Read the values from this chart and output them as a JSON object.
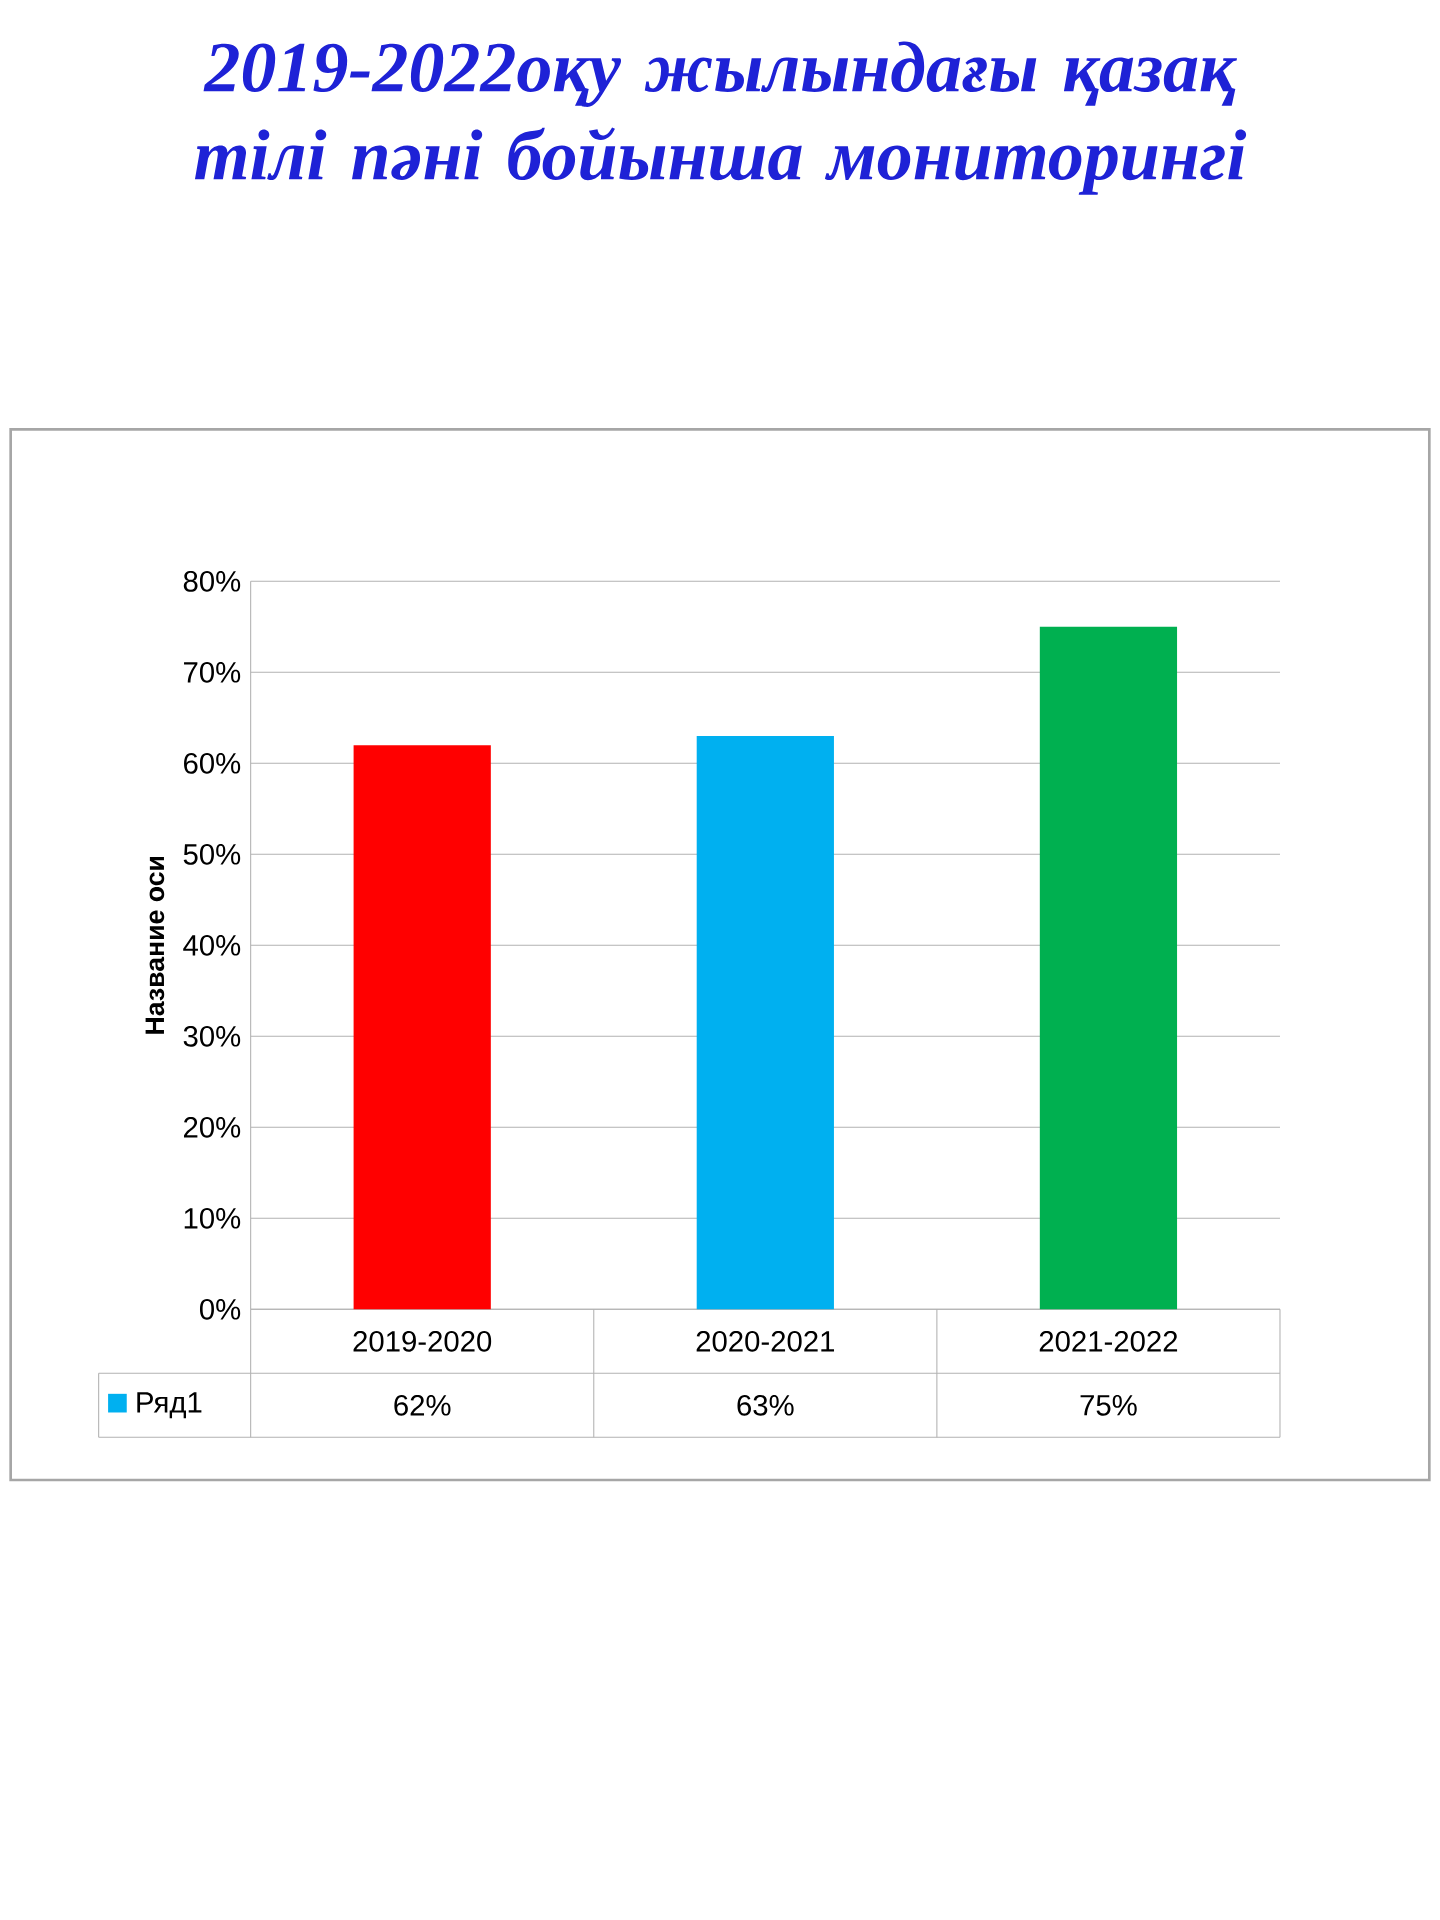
{
  "chart_data": {
    "type": "bar",
    "title": "2019-2022оқу жылындағы қазақ тілі пәні бойынша мониторингі",
    "ylabel": "Название оси",
    "categories": [
      "2019-2020",
      "2020-2021",
      "2021-2022"
    ],
    "series": [
      {
        "name": "Ряд1",
        "color": "#00b0f0",
        "colors": [
          "#ff0000",
          "#00b0f0",
          "#00b050"
        ],
        "values": [
          62,
          63,
          75
        ],
        "value_labels": [
          "62%",
          "63%",
          "75%"
        ]
      }
    ],
    "ylim": [
      0,
      80
    ],
    "yticks": [
      {
        "value": 0,
        "label": "0%"
      },
      {
        "value": 10,
        "label": "10%"
      },
      {
        "value": 20,
        "label": "20%"
      },
      {
        "value": 30,
        "label": "30%"
      },
      {
        "value": 40,
        "label": "40%"
      },
      {
        "value": 50,
        "label": "50%"
      },
      {
        "value": 60,
        "label": "60%"
      },
      {
        "value": 70,
        "label": "70%"
      },
      {
        "value": 80,
        "label": "80%"
      }
    ],
    "grid": true,
    "legend": "bottom left"
  }
}
